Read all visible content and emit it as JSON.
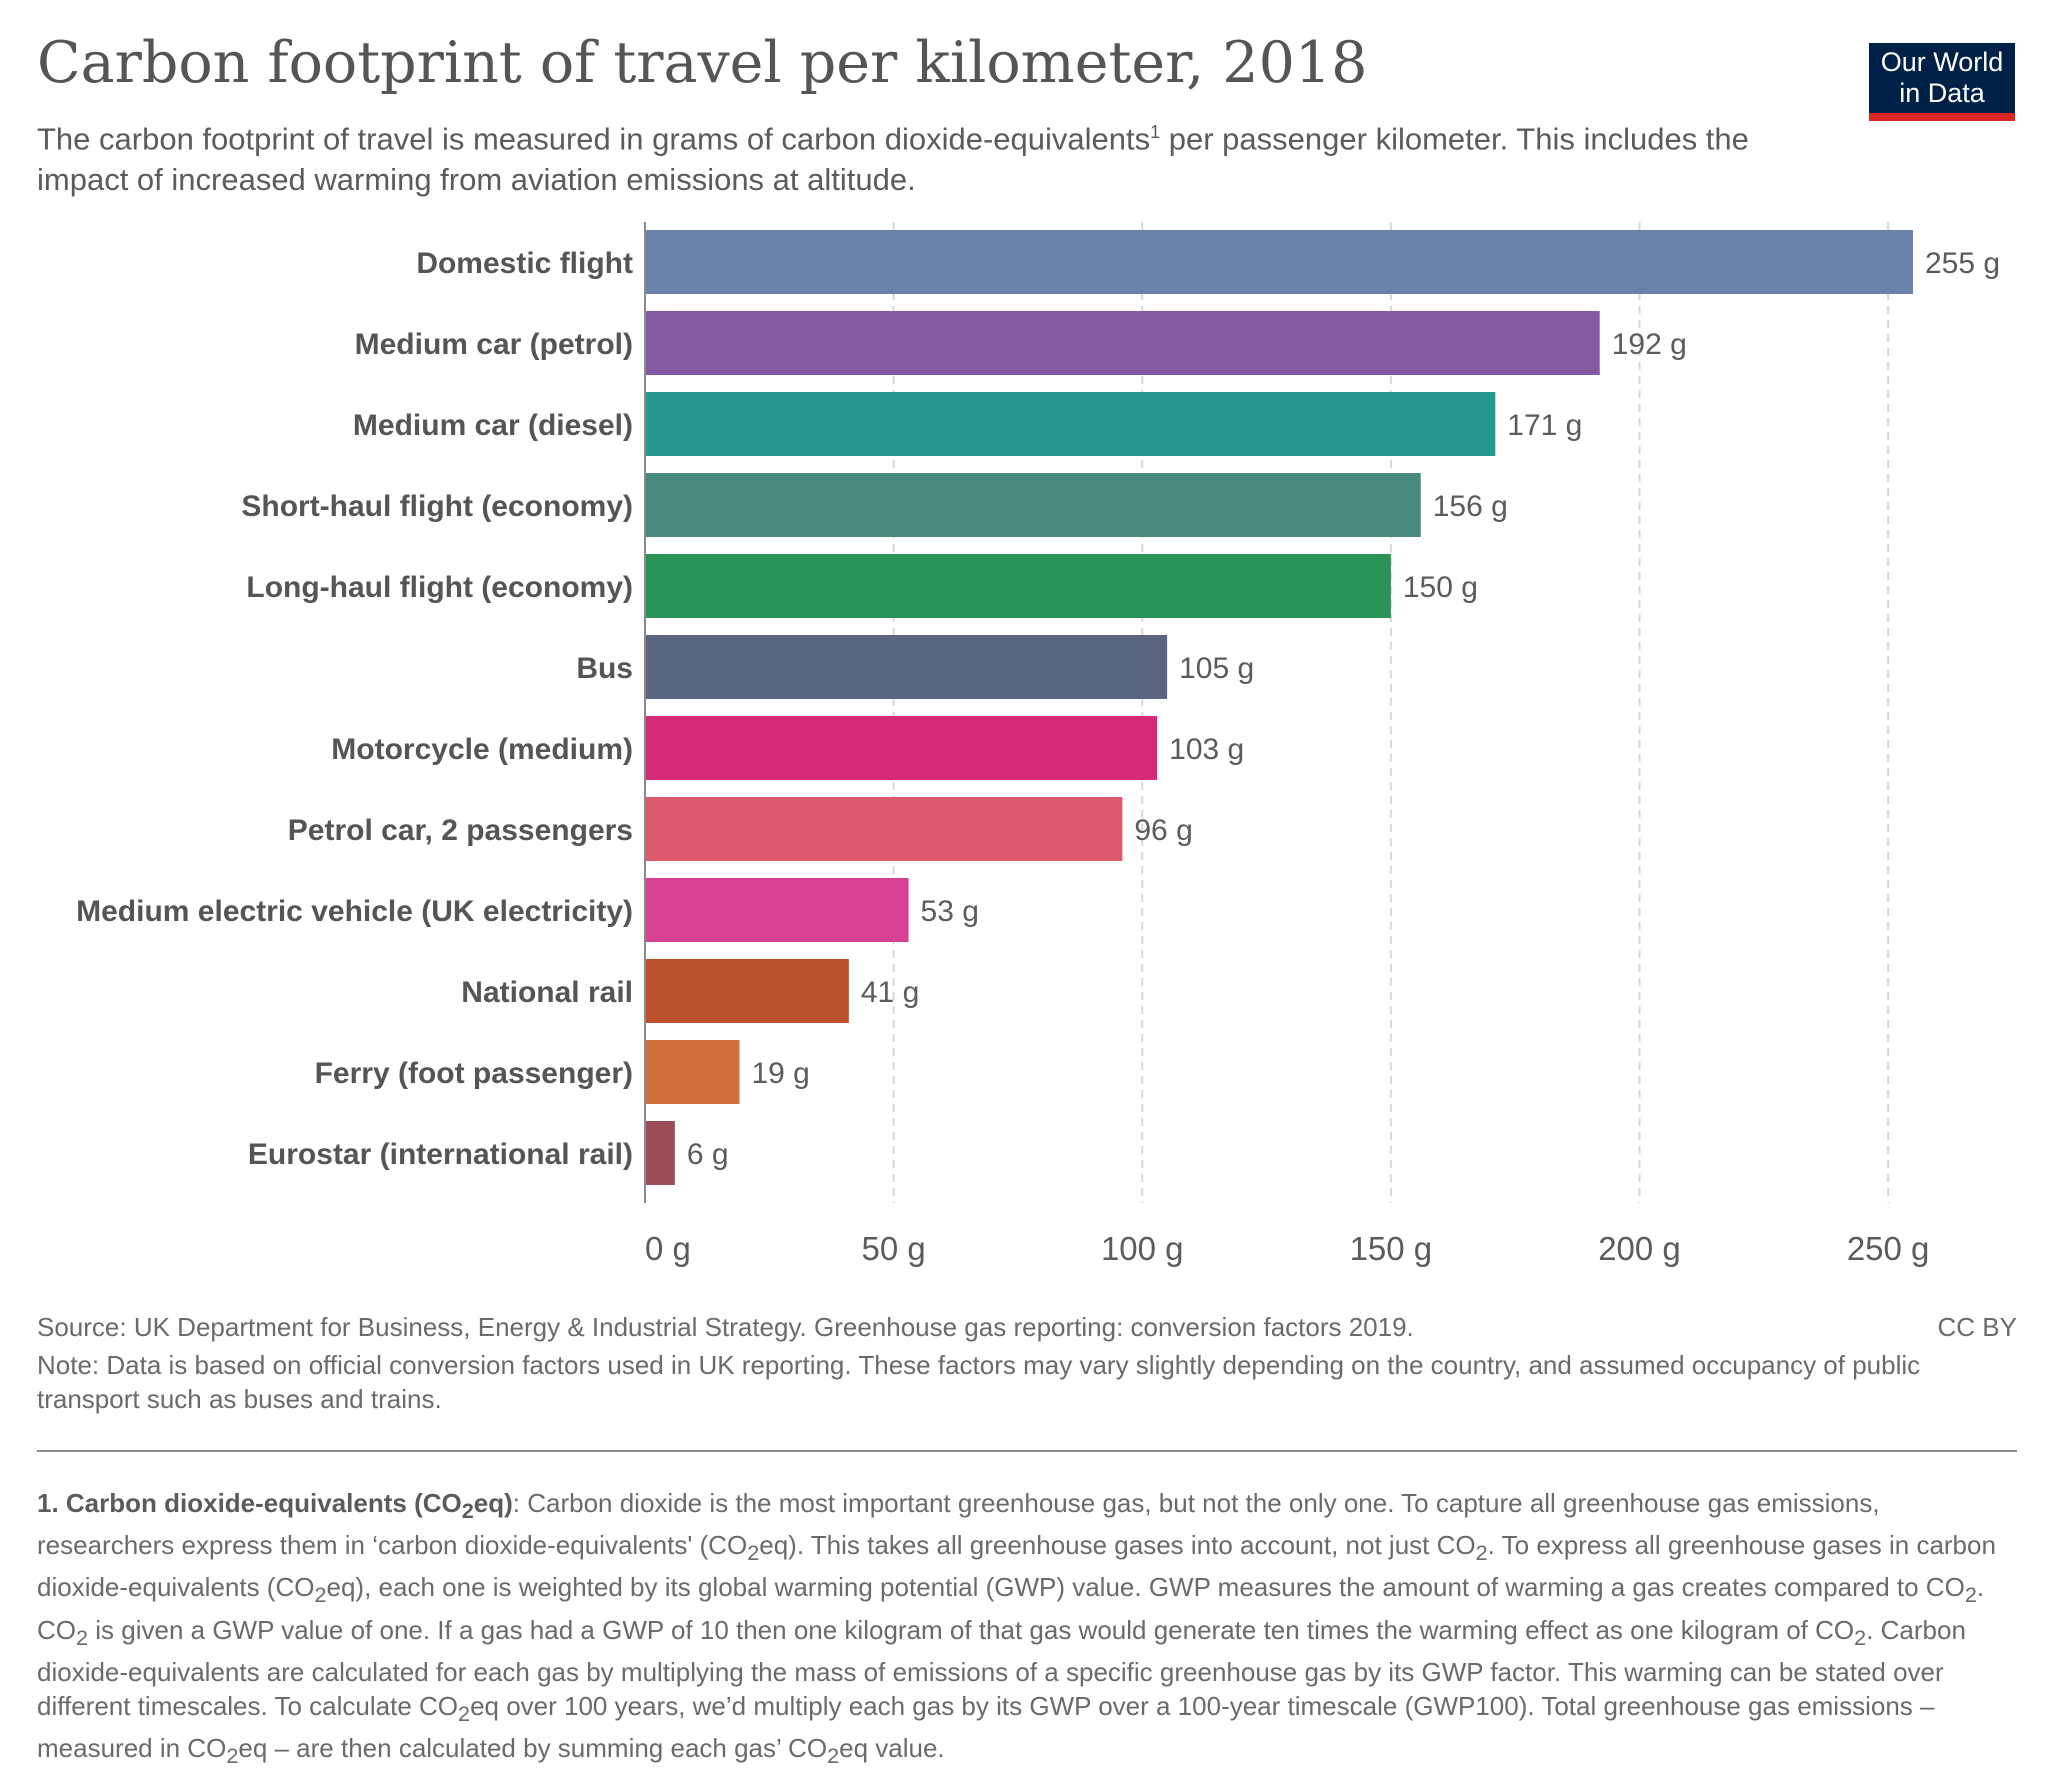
{
  "title": "Carbon footprint of travel per kilometer, 2018",
  "subtitle_pre": "The carbon footprint of travel is measured in grams of carbon dioxide-equivalents",
  "subtitle_sup": "1",
  "subtitle_post": " per passenger kilometer. This includes the impact of increased warming from aviation emissions at altitude.",
  "logo": {
    "line1": "Our World",
    "line2": "in Data",
    "bg_color": "#002147",
    "accent_color": "#dc2626"
  },
  "chart_data": {
    "type": "bar",
    "orientation": "horizontal",
    "categories": [
      "Domestic flight",
      "Medium car (petrol)",
      "Medium car (diesel)",
      "Short-haul flight (economy)",
      "Long-haul flight (economy)",
      "Bus",
      "Motorcycle (medium)",
      "Petrol car, 2 passengers",
      "Medium electric vehicle (UK electricity)",
      "National rail",
      "Ferry (foot passenger)",
      "Eurostar (international rail)"
    ],
    "values": [
      255,
      192,
      171,
      156,
      150,
      105,
      103,
      96,
      53,
      41,
      19,
      6
    ],
    "value_labels": [
      "255 g",
      "192 g",
      "171 g",
      "156 g",
      "150 g",
      "105 g",
      "103 g",
      "96 g",
      "53 g",
      "41 g",
      "19 g",
      "6 g"
    ],
    "colors": [
      "#6882ac",
      "#8459a3",
      "#24978f",
      "#4a8a7e",
      "#289458",
      "#5a6680",
      "#d42b76",
      "#dd5868",
      "#d84094",
      "#bb522d",
      "#cf713a",
      "#9c4c56"
    ],
    "x_ticks": [
      0,
      50,
      100,
      150,
      200,
      250
    ],
    "x_tick_labels": [
      "0 g",
      "50 g",
      "100 g",
      "150 g",
      "200 g",
      "250 g"
    ],
    "xlim": [
      0,
      255
    ],
    "grid": true
  },
  "footer": {
    "source": "Source: UK Department for Business, Energy & Industrial Strategy. Greenhouse gas reporting: conversion factors 2019.",
    "license": "CC BY",
    "note": "Note: Data is based on official conversion factors used in UK reporting. These factors may vary slightly depending on the country, and assumed occupancy of public transport such as buses and trains."
  },
  "footnote": {
    "heading_a": "1. Carbon dioxide-equivalents (CO",
    "heading_sub": "2",
    "heading_b": "eq)",
    "p1": ": Carbon dioxide is the most important greenhouse gas, but not the only one. To capture all greenhouse gas emissions, researchers express them in ‘carbon dioxide-equivalents' (CO",
    "p2": "eq). This takes all greenhouse gases into account, not just CO",
    "p3": ". To express all greenhouse gases in carbon dioxide-equivalents (CO",
    "p4": "eq), each one is weighted by its global warming potential (GWP) value. GWP measures the amount of warming a gas creates compared to CO",
    "p5": ". CO",
    "p6": " is given a GWP value of one. If a gas had a GWP of 10 then one kilogram of that gas would generate ten times the warming effect as one kilogram of CO",
    "p7": ". Carbon dioxide-equivalents are calculated for each gas by multiplying the mass of emissions of a specific greenhouse gas by its GWP factor. This warming can be stated over different timescales. To calculate CO",
    "p8": "eq over 100 years, we’d multiply each gas by its GWP over a 100-year timescale (GWP100). Total greenhouse gas emissions – measured in CO",
    "p9": "eq – are then calculated by summing each gas’ CO",
    "p10": "eq value.",
    "sub": "2"
  }
}
